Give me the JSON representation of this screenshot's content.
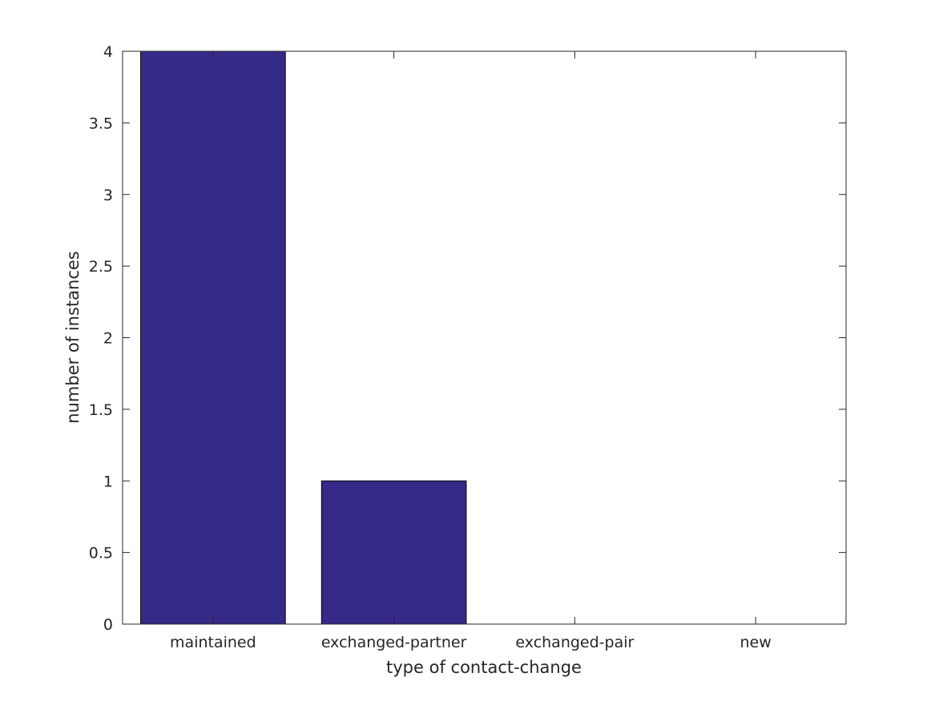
{
  "chart_data": {
    "type": "bar",
    "categories": [
      "maintained",
      "exchanged-partner",
      "exchanged-pair",
      "new"
    ],
    "values": [
      4,
      1,
      0,
      0
    ],
    "xlabel": "type of contact-change",
    "ylabel": "number of instances",
    "ylim": [
      0,
      4
    ],
    "yticks": [
      "0",
      "0.5",
      "1",
      "1.5",
      "2",
      "2.5",
      "3",
      "3.5",
      "4"
    ],
    "grid": false,
    "bar_color": "#352a87",
    "bar_edge_color": "#000000"
  }
}
